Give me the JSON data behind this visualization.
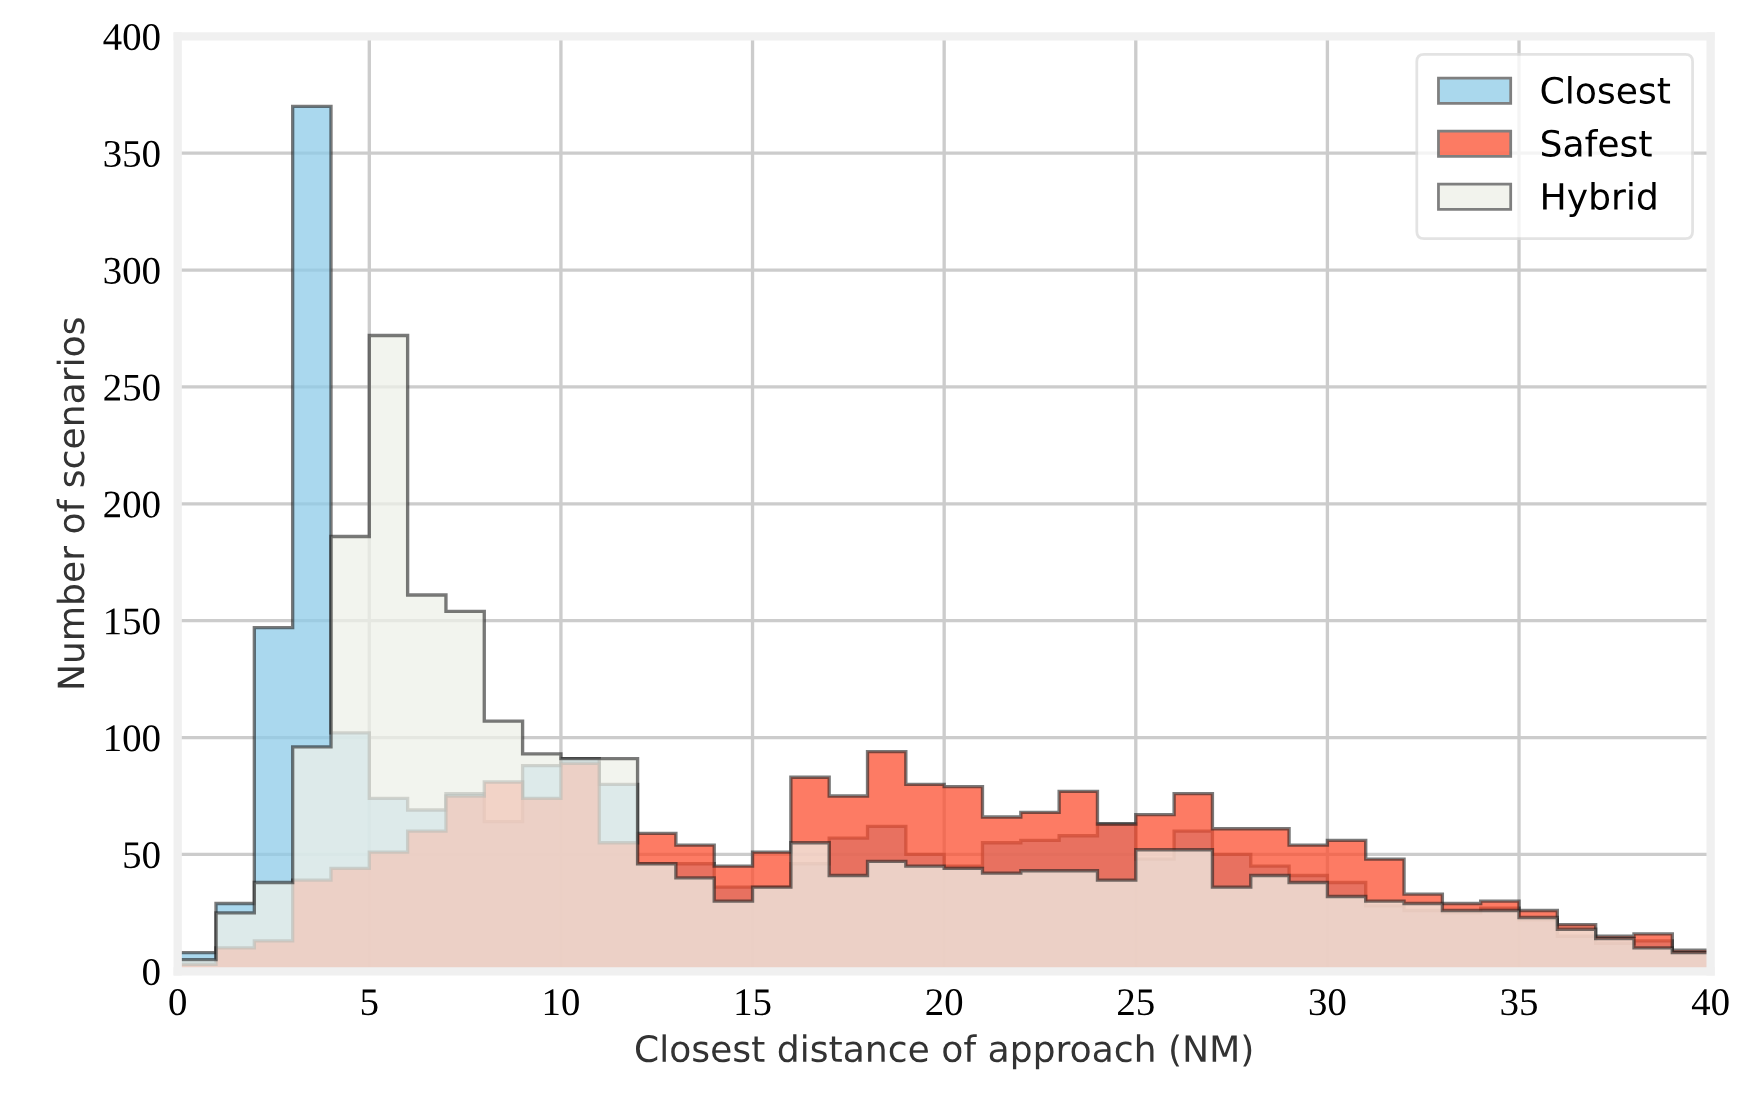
{
  "chart_data": {
    "type": "histogram",
    "xlabel": "Closest distance of approach (NM)",
    "ylabel": "Number of scenarios",
    "bins": [
      0,
      1,
      2,
      3,
      4,
      5,
      6,
      7,
      8,
      9,
      10,
      11,
      12,
      13,
      14,
      15,
      16,
      17,
      18,
      19,
      20,
      21,
      22,
      23,
      24,
      25,
      26,
      27,
      28,
      29,
      30,
      31,
      32,
      33,
      34,
      35,
      36,
      37,
      38,
      39,
      40
    ],
    "series": [
      {
        "name": "Closest",
        "color": "#8ecbe8",
        "values": [
          8,
          29,
          147,
          370,
          102,
          74,
          69,
          76,
          64,
          88,
          91,
          80,
          46,
          46,
          36,
          36,
          46,
          57,
          62,
          50,
          45,
          55,
          56,
          58,
          63,
          48,
          60,
          50,
          45,
          41,
          38,
          28,
          26,
          25,
          27,
          22,
          15,
          12,
          13,
          8
        ]
      },
      {
        "name": "Safest",
        "color": "#fc4f30",
        "values": [
          3,
          10,
          13,
          39,
          44,
          51,
          60,
          75,
          81,
          74,
          89,
          55,
          59,
          54,
          45,
          51,
          83,
          75,
          94,
          80,
          79,
          66,
          68,
          77,
          63,
          67,
          76,
          61,
          61,
          54,
          56,
          48,
          33,
          29,
          30,
          26,
          20,
          15,
          16,
          9
        ]
      },
      {
        "name": "Hybrid",
        "color": "#eef0e8",
        "values": [
          5,
          25,
          38,
          96,
          186,
          272,
          161,
          154,
          107,
          93,
          91,
          91,
          46,
          40,
          30,
          36,
          55,
          41,
          47,
          45,
          44,
          42,
          43,
          43,
          39,
          52,
          52,
          36,
          41,
          38,
          32,
          30,
          29,
          26,
          26,
          23,
          18,
          14,
          10,
          8
        ]
      }
    ],
    "xlim": [
      0,
      40
    ],
    "xticks": [
      0,
      5,
      10,
      15,
      20,
      25,
      30,
      35,
      40
    ],
    "ylim": [
      0,
      400
    ],
    "yticks": [
      0,
      50,
      100,
      150,
      200,
      250,
      300,
      350,
      400
    ],
    "grid": true,
    "legend": "top right"
  }
}
